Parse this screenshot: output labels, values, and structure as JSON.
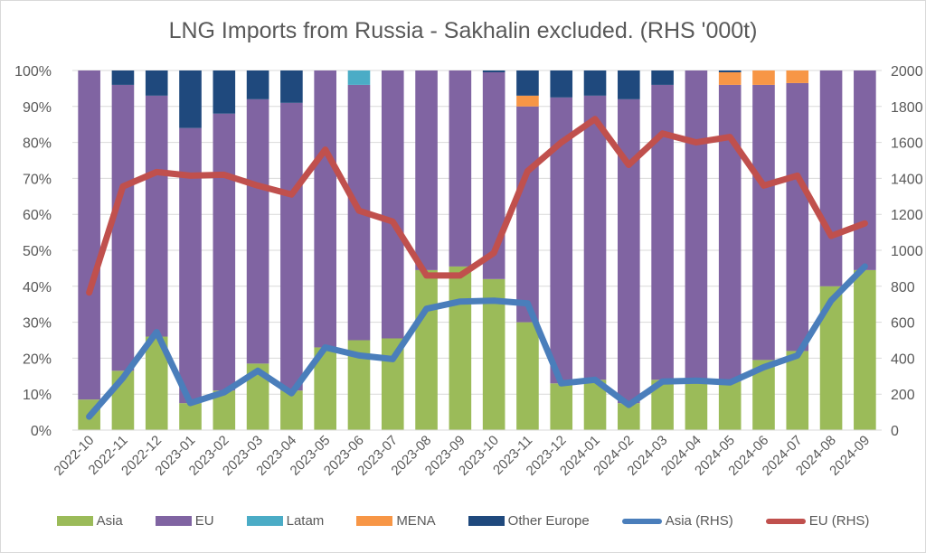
{
  "chart_data": {
    "type": "bar",
    "subtype": "stacked-100-percent-bar-with-secondary-lines",
    "title": "LNG Imports from Russia - Sakhalin excluded. (RHS '000t)",
    "xlabel": "",
    "ylabel": "",
    "y2label": "",
    "ylim": [
      0,
      100
    ],
    "y2lim": [
      0,
      2000
    ],
    "yticks": [
      "0%",
      "10%",
      "20%",
      "30%",
      "40%",
      "50%",
      "60%",
      "70%",
      "80%",
      "90%",
      "100%"
    ],
    "y2ticks": [
      "0",
      "200",
      "400",
      "600",
      "800",
      "1000",
      "1200",
      "1400",
      "1600",
      "1800",
      "2000"
    ],
    "grid": true,
    "legend_position": "bottom",
    "categories": [
      "2022-10",
      "2022-11",
      "2022-12",
      "2023-01",
      "2023-02",
      "2023-03",
      "2023-04",
      "2023-05",
      "2023-06",
      "2023-07",
      "2023-08",
      "2023-09",
      "2023-10",
      "2023-11",
      "2023-12",
      "2024-01",
      "2024-02",
      "2024-03",
      "2024-04",
      "2024-05",
      "2024-06",
      "2024-07",
      "2024-08",
      "2024-09"
    ],
    "series": [
      {
        "name": "Asia",
        "type": "bar",
        "axis": "left",
        "color": "#9bbb59",
        "values": [
          8.5,
          16.5,
          26,
          7.5,
          11,
          18.5,
          11,
          23,
          25,
          25.5,
          44.5,
          45.5,
          42,
          30,
          13,
          14,
          7.5,
          14,
          14,
          13.5,
          19.5,
          22,
          40,
          44.5
        ]
      },
      {
        "name": "EU",
        "type": "bar",
        "axis": "left",
        "color": "#8064a2",
        "values": [
          91.5,
          79.5,
          67,
          76.5,
          77,
          73.5,
          80,
          77,
          71,
          74.5,
          55.5,
          54.5,
          57.5,
          60,
          79.5,
          79,
          84.5,
          82,
          86,
          82.5,
          76.5,
          74.5,
          60,
          55.5
        ]
      },
      {
        "name": "Latam",
        "type": "bar",
        "axis": "left",
        "color": "#4bacc6",
        "values": [
          0,
          0,
          0,
          0,
          0,
          0,
          0,
          0,
          4,
          0,
          0,
          0,
          0,
          0,
          0,
          0,
          0,
          0,
          0,
          0,
          0,
          0,
          0,
          0
        ]
      },
      {
        "name": "MENA",
        "type": "bar",
        "axis": "left",
        "color": "#f79646",
        "values": [
          0,
          0,
          0,
          0,
          0,
          0,
          0,
          0,
          0,
          0,
          0,
          0,
          0,
          3,
          0,
          0,
          0,
          0,
          0,
          3.5,
          4,
          3.5,
          0,
          0
        ]
      },
      {
        "name": "Other Europe",
        "type": "bar",
        "axis": "left",
        "color": "#1f497d",
        "values": [
          0,
          4,
          7,
          16,
          12,
          8,
          9,
          0,
          0,
          0,
          0,
          0,
          0.5,
          7,
          7.5,
          7,
          8,
          4,
          0,
          0.5,
          0,
          0,
          0,
          0
        ]
      },
      {
        "name": "Asia (RHS)",
        "type": "line",
        "axis": "right",
        "color": "#4a7ebb",
        "values": [
          75,
          290,
          545,
          150,
          210,
          330,
          205,
          460,
          415,
          395,
          675,
          715,
          720,
          705,
          260,
          280,
          140,
          270,
          275,
          265,
          350,
          415,
          720,
          910
        ]
      },
      {
        "name": "EU (RHS)",
        "type": "line",
        "axis": "right",
        "color": "#c0504d",
        "values": [
          765,
          1355,
          1435,
          1415,
          1420,
          1360,
          1310,
          1560,
          1220,
          1160,
          860,
          860,
          985,
          1440,
          1600,
          1730,
          1475,
          1650,
          1600,
          1630,
          1360,
          1415,
          1080,
          1150
        ]
      }
    ]
  },
  "legend": {
    "items": [
      {
        "label": "Asia",
        "color": "#9bbb59",
        "kind": "bar"
      },
      {
        "label": "EU",
        "color": "#8064a2",
        "kind": "bar"
      },
      {
        "label": "Latam",
        "color": "#4bacc6",
        "kind": "bar"
      },
      {
        "label": "MENA",
        "color": "#f79646",
        "kind": "bar"
      },
      {
        "label": "Other Europe",
        "color": "#1f497d",
        "kind": "bar"
      },
      {
        "label": "Asia (RHS)",
        "color": "#4a7ebb",
        "kind": "line"
      },
      {
        "label": "EU (RHS)",
        "color": "#c0504d",
        "kind": "line"
      }
    ]
  }
}
